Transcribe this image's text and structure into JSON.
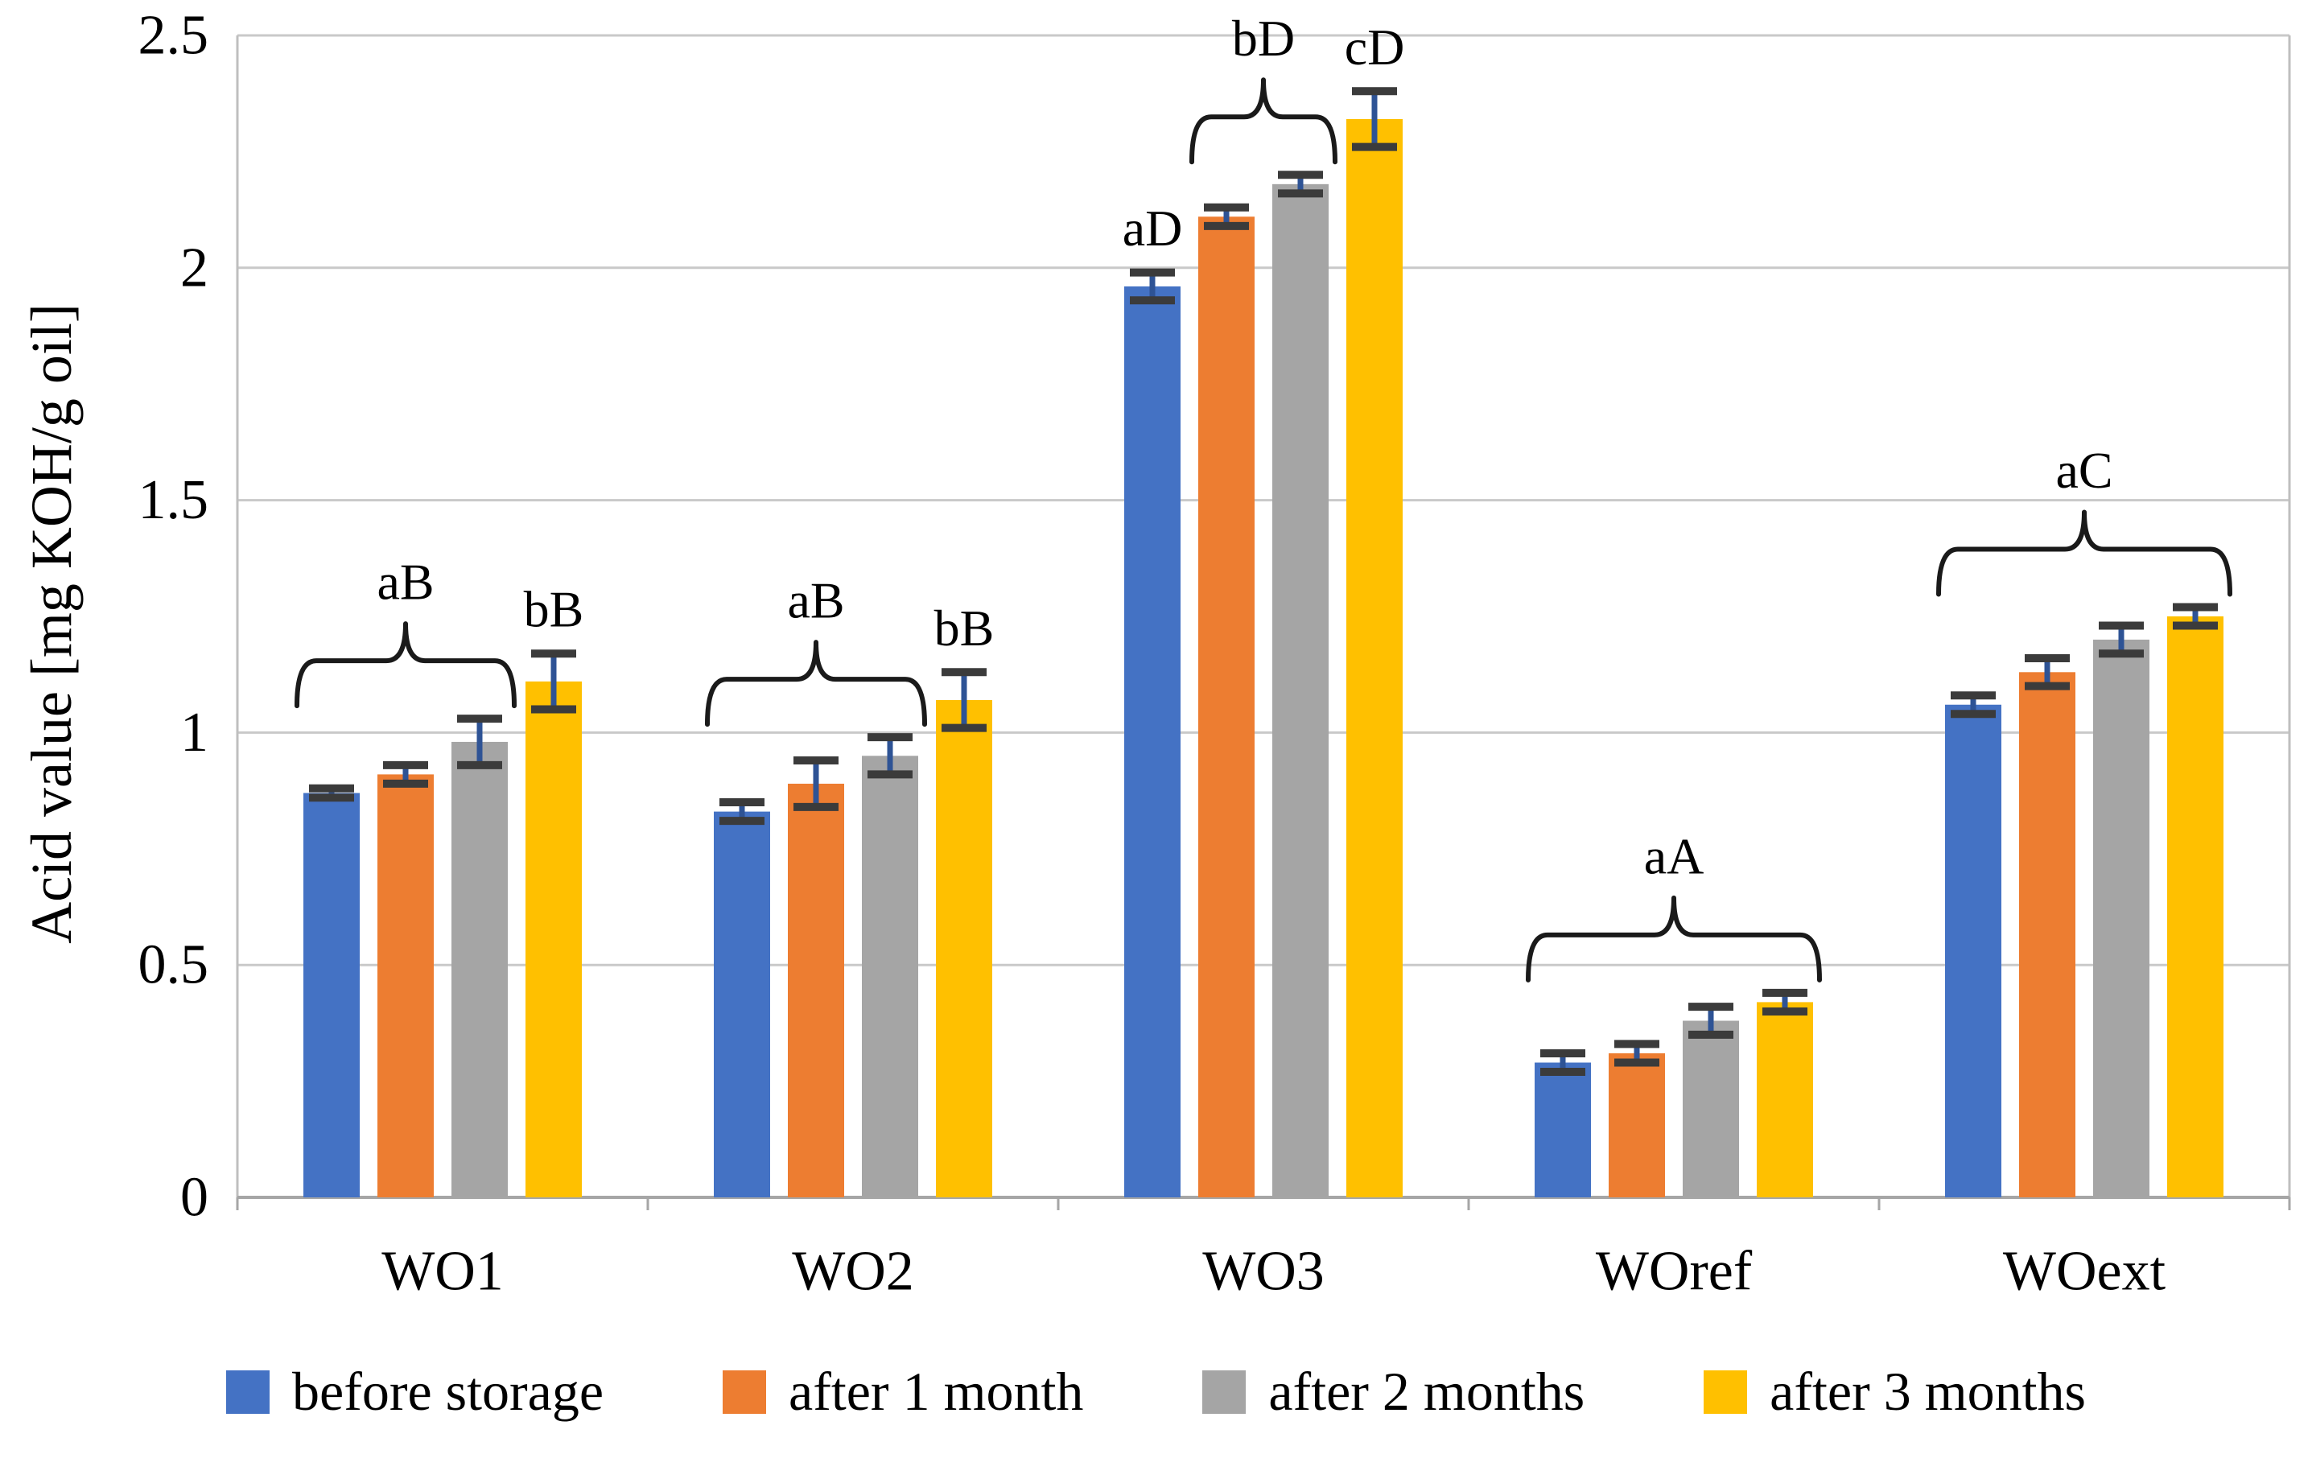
{
  "figure": {
    "background": "#ffffff"
  },
  "chart_data": {
    "type": "bar",
    "title": "",
    "xlabel": "",
    "ylabel": "Acid value [mg KOH/g oil]",
    "ylim": [
      0,
      2.5
    ],
    "ytick_interval": 0.5,
    "ytick_labels": [
      "0",
      "0.5",
      "1",
      "1.5",
      "2",
      "2.5"
    ],
    "grid": true,
    "legend_position": "bottom",
    "categories": [
      "WO1",
      "WO2",
      "WO3",
      "WOref",
      "WOext"
    ],
    "series": [
      {
        "name": "before storage",
        "color": "#4472C4",
        "values": [
          0.87,
          0.83,
          1.96,
          0.29,
          1.06
        ],
        "errors": [
          0.01,
          0.02,
          0.03,
          0.02,
          0.02
        ]
      },
      {
        "name": "after 1 month",
        "color": "#ED7D31",
        "values": [
          0.91,
          0.89,
          2.11,
          0.31,
          1.13
        ],
        "errors": [
          0.02,
          0.05,
          0.02,
          0.02,
          0.03
        ]
      },
      {
        "name": "after 2 months",
        "color": "#A5A5A5",
        "values": [
          0.98,
          0.95,
          2.18,
          0.38,
          1.2
        ],
        "errors": [
          0.05,
          0.04,
          0.02,
          0.03,
          0.03
        ]
      },
      {
        "name": "after 3 months",
        "color": "#FFC000",
        "values": [
          1.11,
          1.07,
          2.32,
          0.42,
          1.25
        ],
        "errors": [
          0.06,
          0.06,
          0.06,
          0.02,
          0.02
        ]
      }
    ],
    "significance_annotations": [
      {
        "category": "WO1",
        "label": "aB",
        "style": "brace",
        "bar_start": 0,
        "bar_end": 2
      },
      {
        "category": "WO1",
        "label": "bB",
        "style": "text",
        "bar_start": 3,
        "bar_end": 3
      },
      {
        "category": "WO2",
        "label": "aB",
        "style": "brace",
        "bar_start": 0,
        "bar_end": 2
      },
      {
        "category": "WO2",
        "label": "bB",
        "style": "text",
        "bar_start": 3,
        "bar_end": 3
      },
      {
        "category": "WO3",
        "label": "aD",
        "style": "text",
        "bar_start": 0,
        "bar_end": 0
      },
      {
        "category": "WO3",
        "label": "bD",
        "style": "brace",
        "bar_start": 1,
        "bar_end": 2
      },
      {
        "category": "WO3",
        "label": "cD",
        "style": "text",
        "bar_start": 3,
        "bar_end": 3
      },
      {
        "category": "WOref",
        "label": "aA",
        "style": "brace",
        "bar_start": 0,
        "bar_end": 3
      },
      {
        "category": "WOext",
        "label": "aC",
        "style": "brace",
        "bar_start": 0,
        "bar_end": 3
      }
    ]
  },
  "colors": {
    "gridline": "#C9C9C9",
    "plot_border": "#BFBFBF",
    "axis_line": "#A6A6A6",
    "error_bar_cap": "#3B3B3B",
    "error_bar_line": "#2E5395",
    "brace": "#1A1A1A",
    "text": "#000000"
  }
}
